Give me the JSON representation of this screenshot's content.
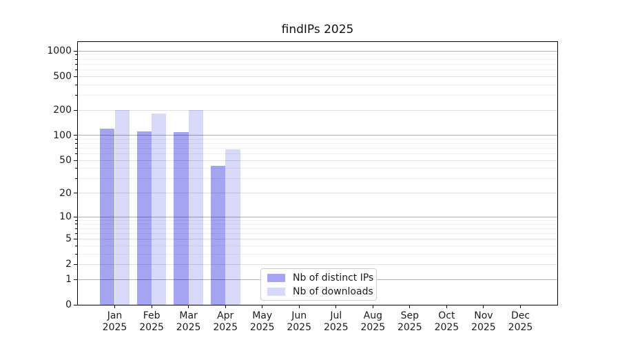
{
  "chart_data": {
    "type": "bar",
    "title": "findIPs 2025",
    "categories": [
      "Jan",
      "Feb",
      "Mar",
      "Apr",
      "May",
      "Jun",
      "Jul",
      "Aug",
      "Sep",
      "Oct",
      "Nov",
      "Dec"
    ],
    "year_label": "2025",
    "series": [
      {
        "name": "Nb of distinct IPs",
        "color": "#a4a4f2",
        "values": [
          120,
          111,
          109,
          43,
          0,
          0,
          0,
          0,
          0,
          0,
          0,
          0
        ]
      },
      {
        "name": "Nb of downloads",
        "color": "#d8d8f8",
        "values": [
          200,
          182,
          200,
          68,
          0,
          0,
          0,
          0,
          0,
          0,
          0,
          0
        ]
      }
    ],
    "xlabel": "",
    "ylabel": "",
    "yscale": "log1p",
    "ylim": [
      0,
      1283
    ],
    "xlim": [
      -1,
      12
    ],
    "bar_width": 0.4,
    "yticks": [
      0,
      1,
      2,
      5,
      10,
      20,
      50,
      100,
      200,
      500,
      1000
    ],
    "yticks_power10": [
      1,
      10,
      100,
      1000
    ],
    "yticks_minor": [
      3,
      4,
      6,
      7,
      8,
      9,
      30,
      40,
      60,
      70,
      80,
      90,
      300,
      400,
      600,
      700,
      800,
      900
    ],
    "grid": true,
    "legend_position": "lower center"
  },
  "colors": {
    "background": "#ffffff",
    "axis": "#000000",
    "text": "#1a1a1a",
    "grid_major": "rgba(0,0,0,0.31)",
    "grid_mid": "rgba(0,0,0,0.12)",
    "grid_minor": "rgba(0,0,0,0.06)",
    "legend_border": "#cccccc"
  }
}
